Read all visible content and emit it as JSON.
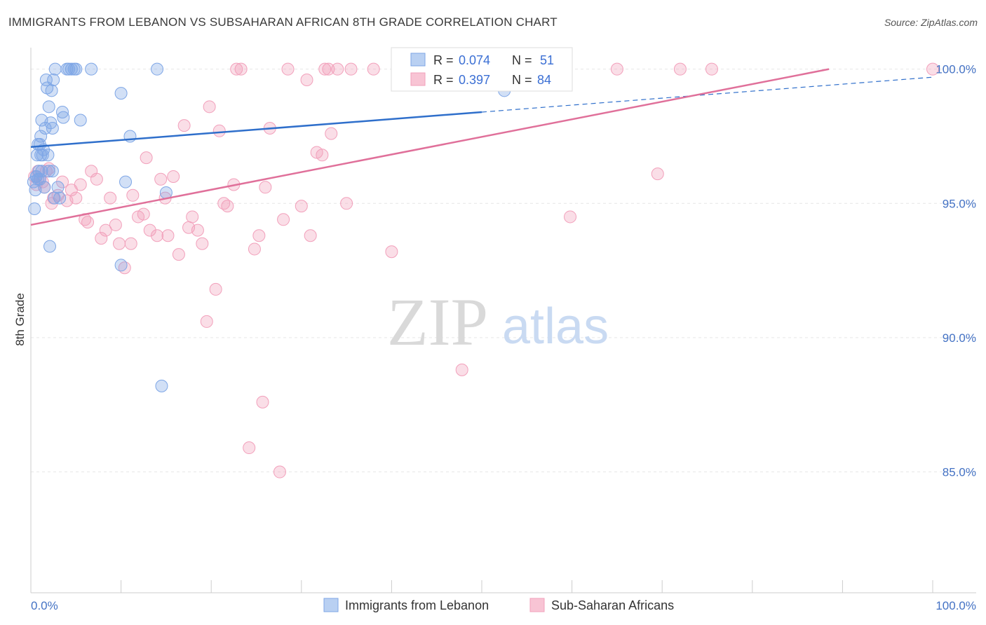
{
  "chart_data": {
    "type": "scatter",
    "title": "IMMIGRANTS FROM LEBANON VS SUBSAHARAN AFRICAN 8TH GRADE CORRELATION CHART",
    "source": "Source: ZipAtlas.com",
    "xlabel": "",
    "ylabel": "8th Grade",
    "xlim": [
      0,
      100
    ],
    "ylim": [
      80.5,
      100.8
    ],
    "x_tick_labels": [
      "0.0%",
      "100.0%"
    ],
    "y_ticks": [
      85,
      90,
      95,
      100
    ],
    "y_tick_labels": [
      "85.0%",
      "90.0%",
      "95.0%",
      "100.0%"
    ],
    "grid": true,
    "legend_position": "bottom-center",
    "watermark": {
      "zip": "ZIP",
      "atlas": "atlas"
    },
    "series": [
      {
        "name": "Immigrants from Lebanon",
        "color": "#7ea6e6",
        "line_color": "#2f6fcb",
        "r_label": "R =",
        "r_value": "0.074",
        "n_label": "N =",
        "n_value": "51",
        "trend": {
          "x0": 0,
          "y0": 97.1,
          "x1": 50,
          "y1": 98.4,
          "x_end": 100,
          "y_end": 99.7
        },
        "points": [
          [
            0.4,
            94.8
          ],
          [
            0.5,
            95.5
          ],
          [
            0.6,
            96.0
          ],
          [
            0.7,
            96.8
          ],
          [
            0.8,
            97.2
          ],
          [
            0.9,
            96.2
          ],
          [
            1.0,
            95.9
          ],
          [
            1.1,
            97.5
          ],
          [
            1.2,
            98.1
          ],
          [
            1.3,
            96.8
          ],
          [
            1.5,
            95.6
          ],
          [
            1.6,
            97.8
          ],
          [
            1.7,
            99.6
          ],
          [
            1.8,
            99.3
          ],
          [
            1.9,
            96.8
          ],
          [
            2.0,
            98.6
          ],
          [
            2.1,
            93.4
          ],
          [
            2.2,
            98.0
          ],
          [
            2.3,
            99.2
          ],
          [
            2.4,
            97.8
          ],
          [
            2.5,
            99.6
          ],
          [
            2.6,
            95.2
          ],
          [
            2.7,
            100.0
          ],
          [
            2.0,
            96.2
          ],
          [
            1.4,
            97.0
          ],
          [
            0.3,
            95.8
          ],
          [
            3.0,
            95.6
          ],
          [
            3.2,
            95.2
          ],
          [
            3.5,
            98.4
          ],
          [
            3.6,
            98.2
          ],
          [
            4.0,
            100.0
          ],
          [
            4.2,
            100.0
          ],
          [
            4.5,
            100.0
          ],
          [
            4.8,
            100.0
          ],
          [
            5.0,
            100.0
          ],
          [
            5.5,
            98.1
          ],
          [
            6.7,
            100.0
          ],
          [
            10.0,
            99.1
          ],
          [
            10.5,
            95.8
          ],
          [
            11.0,
            97.5
          ],
          [
            10.0,
            92.7
          ],
          [
            14.0,
            100.0
          ],
          [
            14.5,
            88.2
          ],
          [
            15.0,
            95.4
          ],
          [
            0.6,
            96.0
          ],
          [
            1.0,
            97.2
          ],
          [
            1.2,
            96.2
          ],
          [
            0.8,
            95.9
          ],
          [
            1.1,
            96.8
          ],
          [
            2.4,
            96.2
          ],
          [
            52.5,
            99.2
          ]
        ]
      },
      {
        "name": "Sub-Saharan Africans",
        "color": "#f2a0bb",
        "line_color": "#e0709a",
        "r_label": "R =",
        "r_value": "0.397",
        "n_label": "N =",
        "n_value": "84",
        "trend": {
          "x0": 0,
          "y0": 94.2,
          "x1": 88.5,
          "y1": 100.0
        },
        "points": [
          [
            0.4,
            96.0
          ],
          [
            0.6,
            95.7
          ],
          [
            0.8,
            96.2
          ],
          [
            1.0,
            95.9
          ],
          [
            1.3,
            95.8
          ],
          [
            1.5,
            95.6
          ],
          [
            1.7,
            96.2
          ],
          [
            2.0,
            96.3
          ],
          [
            2.3,
            95.0
          ],
          [
            2.5,
            95.2
          ],
          [
            3.0,
            95.3
          ],
          [
            3.5,
            95.8
          ],
          [
            4.0,
            95.1
          ],
          [
            4.5,
            95.5
          ],
          [
            5.0,
            95.2
          ],
          [
            5.5,
            95.7
          ],
          [
            6.0,
            94.4
          ],
          [
            6.3,
            94.3
          ],
          [
            6.7,
            96.2
          ],
          [
            7.3,
            95.9
          ],
          [
            7.8,
            93.7
          ],
          [
            8.3,
            94.0
          ],
          [
            8.8,
            95.2
          ],
          [
            9.4,
            94.2
          ],
          [
            9.8,
            93.5
          ],
          [
            10.4,
            92.6
          ],
          [
            11.1,
            93.5
          ],
          [
            11.3,
            95.3
          ],
          [
            11.9,
            94.5
          ],
          [
            12.5,
            94.6
          ],
          [
            12.8,
            96.7
          ],
          [
            13.2,
            94.0
          ],
          [
            14.0,
            93.8
          ],
          [
            14.4,
            95.9
          ],
          [
            14.9,
            95.2
          ],
          [
            15.2,
            93.8
          ],
          [
            15.8,
            96.0
          ],
          [
            16.4,
            93.1
          ],
          [
            17.0,
            97.9
          ],
          [
            17.5,
            94.1
          ],
          [
            17.9,
            94.5
          ],
          [
            18.5,
            94.0
          ],
          [
            19.0,
            93.5
          ],
          [
            19.5,
            90.6
          ],
          [
            19.8,
            98.6
          ],
          [
            20.5,
            91.8
          ],
          [
            20.9,
            97.7
          ],
          [
            21.4,
            95.0
          ],
          [
            21.8,
            94.9
          ],
          [
            22.5,
            95.7
          ],
          [
            22.8,
            100.0
          ],
          [
            23.3,
            100.0
          ],
          [
            24.2,
            85.9
          ],
          [
            24.8,
            93.3
          ],
          [
            25.3,
            93.8
          ],
          [
            25.7,
            87.6
          ],
          [
            26.0,
            95.6
          ],
          [
            26.5,
            97.8
          ],
          [
            28.0,
            94.4
          ],
          [
            27.6,
            85.0
          ],
          [
            28.5,
            100.0
          ],
          [
            30.0,
            94.9
          ],
          [
            30.6,
            99.6
          ],
          [
            31.0,
            93.8
          ],
          [
            31.7,
            96.9
          ],
          [
            32.3,
            96.8
          ],
          [
            32.6,
            100.0
          ],
          [
            33.0,
            100.0
          ],
          [
            33.3,
            97.6
          ],
          [
            34.0,
            100.0
          ],
          [
            35.0,
            95.0
          ],
          [
            35.5,
            100.0
          ],
          [
            38.0,
            100.0
          ],
          [
            40.0,
            93.2
          ],
          [
            42.5,
            100.0
          ],
          [
            47.0,
            100.0
          ],
          [
            47.8,
            88.8
          ],
          [
            59.0,
            100.0
          ],
          [
            59.8,
            94.5
          ],
          [
            65.0,
            100.0
          ],
          [
            69.5,
            96.1
          ],
          [
            72.0,
            100.0
          ],
          [
            75.5,
            100.0
          ],
          [
            100.0,
            100.0
          ]
        ]
      }
    ]
  }
}
